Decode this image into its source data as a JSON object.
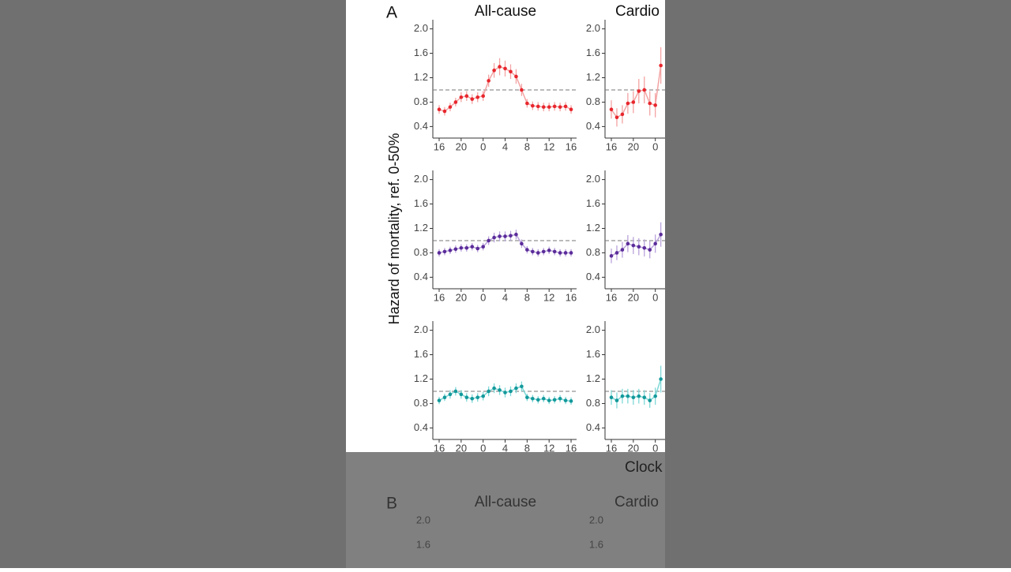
{
  "panel_a": {
    "label": "A",
    "column_titles": [
      "All-cause",
      "Cardio"
    ],
    "y_axis_label": "Hazard of mortality, ref. 0-50%",
    "x_axis_label": "Clock"
  },
  "chart_data": [
    {
      "type": "line",
      "color": "#e8262d",
      "error_color": "#f4a3a3",
      "reference_line": 1.0,
      "x": [
        16,
        17,
        18,
        19,
        20,
        21,
        22,
        23,
        24,
        25,
        26,
        27,
        28,
        29,
        30,
        31,
        32,
        33,
        34,
        35,
        36,
        37,
        38,
        39,
        40
      ],
      "values": [
        0.68,
        0.65,
        0.72,
        0.8,
        0.88,
        0.9,
        0.85,
        0.88,
        0.9,
        1.15,
        1.32,
        1.38,
        1.35,
        1.3,
        1.22,
        1.0,
        0.78,
        0.74,
        0.73,
        0.72,
        0.72,
        0.73,
        0.72,
        0.73,
        0.68
      ],
      "errors": [
        0.07,
        0.07,
        0.07,
        0.07,
        0.08,
        0.08,
        0.08,
        0.08,
        0.08,
        0.1,
        0.12,
        0.14,
        0.13,
        0.12,
        0.12,
        0.1,
        0.07,
        0.07,
        0.07,
        0.07,
        0.07,
        0.07,
        0.07,
        0.07,
        0.07
      ],
      "xlim": [
        14.85,
        41
      ],
      "ylim": [
        0.25,
        2.15
      ],
      "xticks": [
        16,
        20,
        {
          "value": 24,
          "label": "0"
        },
        {
          "value": 28,
          "label": "4"
        },
        {
          "value": 32,
          "label": "8"
        },
        {
          "value": 36,
          "label": "12"
        },
        {
          "value": 40,
          "label": "16"
        }
      ],
      "yticks": [
        {
          "value": 0.4,
          "label": "0.4"
        },
        {
          "value": 0.8,
          "label": "0.8"
        },
        {
          "value": 1.2,
          "label": "1.2"
        },
        {
          "value": 1.6,
          "label": "1.6"
        },
        {
          "value": 2,
          "label": "2.0"
        }
      ]
    },
    {
      "type": "line",
      "color": "#e8262d",
      "error_color": "#f4a3a3",
      "reference_line": 1.0,
      "x": [
        16,
        17,
        18,
        19,
        20,
        21,
        22,
        23,
        24,
        25
      ],
      "values": [
        0.68,
        0.55,
        0.6,
        0.78,
        0.8,
        0.98,
        1.0,
        0.78,
        0.75,
        1.4
      ],
      "errors": [
        0.15,
        0.15,
        0.15,
        0.17,
        0.18,
        0.2,
        0.22,
        0.2,
        0.2,
        0.3
      ],
      "xlim": [
        14.85,
        41
      ],
      "ylim": [
        0.25,
        2.15
      ],
      "xticks": [
        16,
        20,
        {
          "value": 24,
          "label": "0"
        }
      ],
      "yticks": [
        {
          "value": 0.4,
          "label": "0.4"
        },
        {
          "value": 0.8,
          "label": "0.8"
        },
        {
          "value": 1.2,
          "label": "1.2"
        },
        {
          "value": 1.6,
          "label": "1.6"
        },
        {
          "value": 2,
          "label": "2.0"
        }
      ]
    },
    {
      "type": "line",
      "color": "#5b2c9a",
      "error_color": "#b9a3dc",
      "reference_line": 1.0,
      "x": [
        16,
        17,
        18,
        19,
        20,
        21,
        22,
        23,
        24,
        25,
        26,
        27,
        28,
        29,
        30,
        31,
        32,
        33,
        34,
        35,
        36,
        37,
        38,
        39,
        40
      ],
      "values": [
        0.8,
        0.82,
        0.84,
        0.86,
        0.88,
        0.88,
        0.9,
        0.87,
        0.9,
        1.0,
        1.05,
        1.07,
        1.07,
        1.08,
        1.1,
        0.95,
        0.85,
        0.82,
        0.8,
        0.82,
        0.84,
        0.82,
        0.8,
        0.8,
        0.8
      ],
      "errors": [
        0.06,
        0.06,
        0.06,
        0.06,
        0.06,
        0.06,
        0.06,
        0.06,
        0.06,
        0.07,
        0.08,
        0.08,
        0.08,
        0.08,
        0.08,
        0.07,
        0.06,
        0.06,
        0.06,
        0.06,
        0.06,
        0.06,
        0.06,
        0.06,
        0.06
      ],
      "xlim": [
        14.85,
        41
      ],
      "ylim": [
        0.25,
        2.15
      ],
      "xticks": [
        16,
        20,
        {
          "value": 24,
          "label": "0"
        },
        {
          "value": 28,
          "label": "4"
        },
        {
          "value": 32,
          "label": "8"
        },
        {
          "value": 36,
          "label": "12"
        },
        {
          "value": 40,
          "label": "16"
        }
      ],
      "yticks": [
        {
          "value": 0.4,
          "label": "0.4"
        },
        {
          "value": 0.8,
          "label": "0.8"
        },
        {
          "value": 1.2,
          "label": "1.2"
        },
        {
          "value": 1.6,
          "label": "1.6"
        },
        {
          "value": 2,
          "label": "2.0"
        }
      ]
    },
    {
      "type": "line",
      "color": "#5b2c9a",
      "error_color": "#b9a3dc",
      "reference_line": 1.0,
      "x": [
        16,
        17,
        18,
        19,
        20,
        21,
        22,
        23,
        24,
        25
      ],
      "values": [
        0.75,
        0.8,
        0.85,
        0.95,
        0.92,
        0.9,
        0.88,
        0.85,
        0.95,
        1.1
      ],
      "errors": [
        0.12,
        0.12,
        0.13,
        0.14,
        0.14,
        0.14,
        0.14,
        0.14,
        0.15,
        0.2
      ],
      "xlim": [
        14.85,
        41
      ],
      "ylim": [
        0.25,
        2.15
      ],
      "xticks": [
        16,
        20,
        {
          "value": 24,
          "label": "0"
        }
      ],
      "yticks": [
        {
          "value": 0.4,
          "label": "0.4"
        },
        {
          "value": 0.8,
          "label": "0.8"
        },
        {
          "value": 1.2,
          "label": "1.2"
        },
        {
          "value": 1.6,
          "label": "1.6"
        },
        {
          "value": 2,
          "label": "2.0"
        }
      ]
    },
    {
      "type": "line",
      "color": "#14999b",
      "error_color": "#80d8d8",
      "reference_line": 1.0,
      "x": [
        16,
        17,
        18,
        19,
        20,
        21,
        22,
        23,
        24,
        25,
        26,
        27,
        28,
        29,
        30,
        31,
        32,
        33,
        34,
        35,
        36,
        37,
        38,
        39,
        40
      ],
      "values": [
        0.85,
        0.9,
        0.95,
        1.0,
        0.95,
        0.9,
        0.88,
        0.9,
        0.92,
        1.0,
        1.05,
        1.02,
        0.98,
        1.0,
        1.05,
        1.08,
        0.9,
        0.88,
        0.86,
        0.88,
        0.85,
        0.86,
        0.88,
        0.85,
        0.84
      ],
      "errors": [
        0.06,
        0.06,
        0.07,
        0.07,
        0.07,
        0.07,
        0.07,
        0.07,
        0.07,
        0.08,
        0.08,
        0.08,
        0.08,
        0.08,
        0.08,
        0.08,
        0.06,
        0.06,
        0.06,
        0.06,
        0.06,
        0.06,
        0.06,
        0.06,
        0.06
      ],
      "xlim": [
        14.85,
        41
      ],
      "ylim": [
        0.25,
        2.15
      ],
      "xticks": [
        16,
        20,
        {
          "value": 24,
          "label": "0"
        },
        {
          "value": 28,
          "label": "4"
        },
        {
          "value": 32,
          "label": "8"
        },
        {
          "value": 36,
          "label": "12"
        },
        {
          "value": 40,
          "label": "16"
        }
      ],
      "yticks": [
        {
          "value": 0.4,
          "label": "0.4"
        },
        {
          "value": 0.8,
          "label": "0.8"
        },
        {
          "value": 1.2,
          "label": "1.2"
        },
        {
          "value": 1.6,
          "label": "1.6"
        },
        {
          "value": 2,
          "label": "2.0"
        }
      ]
    },
    {
      "type": "line",
      "color": "#14999b",
      "error_color": "#80d8d8",
      "reference_line": 1.0,
      "x": [
        16,
        17,
        18,
        19,
        20,
        21,
        22,
        23,
        24,
        25
      ],
      "values": [
        0.9,
        0.85,
        0.92,
        0.92,
        0.9,
        0.92,
        0.9,
        0.85,
        0.92,
        1.2
      ],
      "errors": [
        0.12,
        0.13,
        0.12,
        0.12,
        0.12,
        0.12,
        0.12,
        0.12,
        0.14,
        0.22
      ],
      "xlim": [
        14.85,
        41
      ],
      "ylim": [
        0.25,
        2.15
      ],
      "xticks": [
        16,
        20,
        {
          "value": 24,
          "label": "0"
        }
      ],
      "yticks": [
        {
          "value": 0.4,
          "label": "0.4"
        },
        {
          "value": 0.8,
          "label": "0.8"
        },
        {
          "value": 1.2,
          "label": "1.2"
        },
        {
          "value": 1.6,
          "label": "1.6"
        },
        {
          "value": 2,
          "label": "2.0"
        }
      ]
    }
  ],
  "panel_b": {
    "label": "B",
    "column_titles": [
      "All-cause",
      "Cardio"
    ],
    "tick_labels": [
      "2.0",
      "1.6"
    ]
  }
}
